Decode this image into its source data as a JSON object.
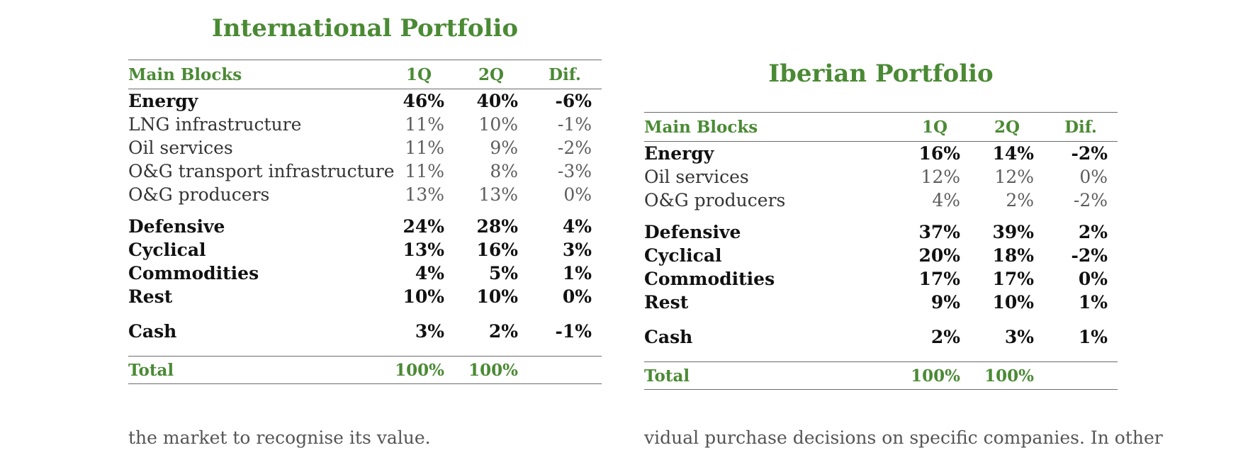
{
  "international": {
    "title": "International Portfolio",
    "headers": {
      "name": "Main Blocks",
      "q1": "1Q",
      "q2": "2Q",
      "dif": "Dif."
    },
    "rows": [
      {
        "name": "Energy",
        "q1": "46%",
        "q2": "40%",
        "dif": "-6%"
      },
      {
        "name": "LNG infrastructure",
        "q1": "11%",
        "q2": "10%",
        "dif": "-1%"
      },
      {
        "name": "Oil services",
        "q1": "11%",
        "q2": "9%",
        "dif": "-2%"
      },
      {
        "name": "O&G transport infrastructure",
        "q1": "11%",
        "q2": "8%",
        "dif": "-3%"
      },
      {
        "name": "O&G producers",
        "q1": "13%",
        "q2": "13%",
        "dif": "0%"
      },
      {
        "name": "Defensive",
        "q1": "24%",
        "q2": "28%",
        "dif": "4%"
      },
      {
        "name": "Cyclical",
        "q1": "13%",
        "q2": "16%",
        "dif": "3%"
      },
      {
        "name": "Commodities",
        "q1": "4%",
        "q2": "5%",
        "dif": "1%"
      },
      {
        "name": "Rest",
        "q1": "10%",
        "q2": "10%",
        "dif": "0%"
      },
      {
        "name": "Cash",
        "q1": "3%",
        "q2": "2%",
        "dif": "-1%"
      }
    ],
    "total": {
      "name": "Total",
      "q1": "100%",
      "q2": "100%",
      "dif": ""
    }
  },
  "iberian": {
    "title": "Iberian Portfolio",
    "headers": {
      "name": "Main Blocks",
      "q1": "1Q",
      "q2": "2Q",
      "dif": "Dif."
    },
    "rows": [
      {
        "name": "Energy",
        "q1": "16%",
        "q2": "14%",
        "dif": "-2%"
      },
      {
        "name": "Oil services",
        "q1": "12%",
        "q2": "12%",
        "dif": "0%"
      },
      {
        "name": "O&G producers",
        "q1": "4%",
        "q2": "2%",
        "dif": "-2%"
      },
      {
        "name": "Defensive",
        "q1": "37%",
        "q2": "39%",
        "dif": "2%"
      },
      {
        "name": "Cyclical",
        "q1": "20%",
        "q2": "18%",
        "dif": "-2%"
      },
      {
        "name": "Commodities",
        "q1": "17%",
        "q2": "17%",
        "dif": "0%"
      },
      {
        "name": "Rest",
        "q1": "9%",
        "q2": "10%",
        "dif": "1%"
      },
      {
        "name": "Cash",
        "q1": "2%",
        "q2": "3%",
        "dif": "1%"
      }
    ],
    "total": {
      "name": "Total",
      "q1": "100%",
      "q2": "100%",
      "dif": ""
    }
  },
  "body_text": {
    "left": "the market to recognise its value.",
    "right": "vidual purchase decisions on specific companies. In other"
  }
}
